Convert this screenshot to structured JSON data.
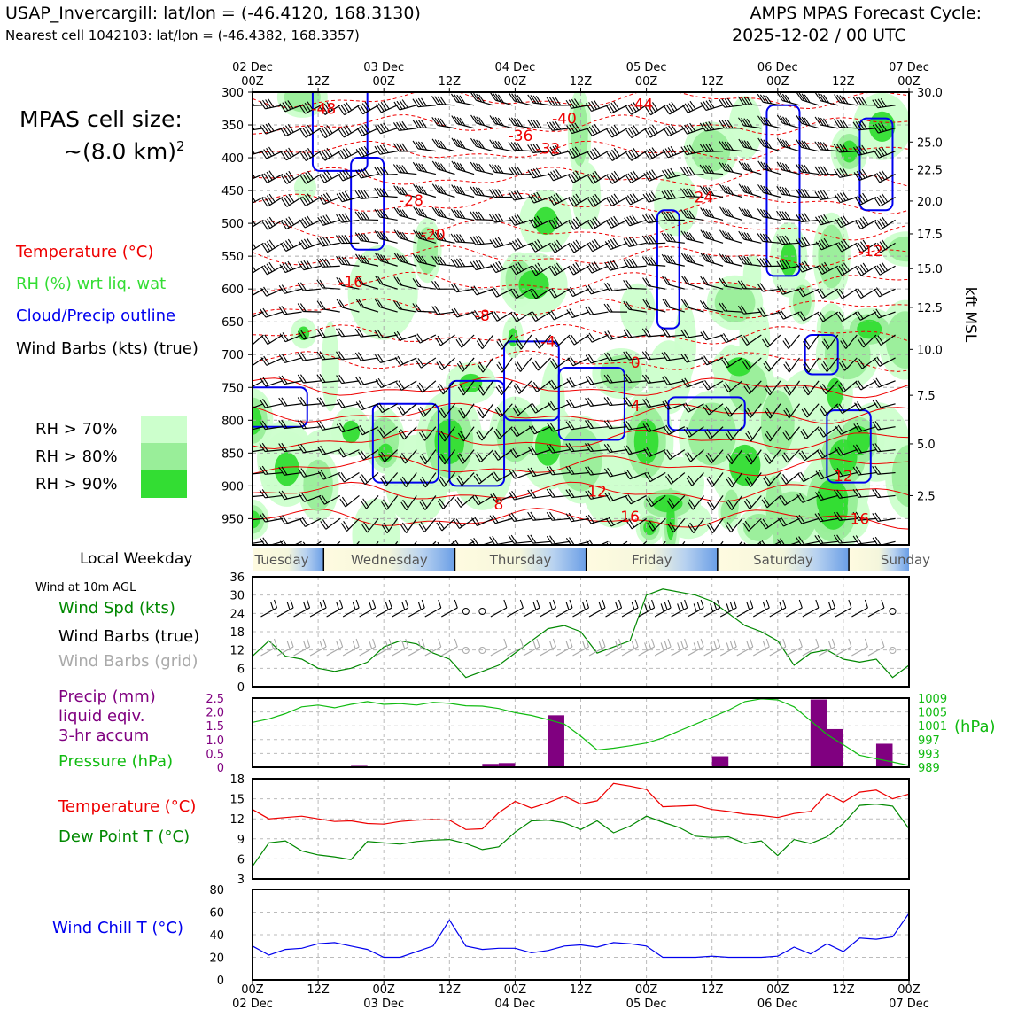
{
  "header": {
    "station_title": "USAP_Invercargill: lat/lon = (-46.4120, 168.3130)",
    "nearest_cell": "Nearest cell 1042103: lat/lon = (-46.4382, 168.3357)",
    "forecast_cycle_line1": "AMPS MPAS Forecast Cycle:",
    "forecast_cycle_line2": "2025-12-02 / 00 UTC"
  },
  "legend": {
    "cell_size_line1": "MPAS cell size:",
    "cell_size_line2": "~(8.0 km)",
    "cell_size_sup": "2",
    "temperature": "Temperature (°C)",
    "rh": "RH (%) wrt liq. wat",
    "cloud": "Cloud/Precip outline",
    "wind_barbs": "Wind Barbs (kts) (true)",
    "rh70": "RH > 70%",
    "rh80": "RH > 80%",
    "rh90": "RH > 90%",
    "local_weekday": "Local Weekday",
    "wind_10m": "Wind at 10m AGL",
    "wind_spd": "Wind Spd (kts)",
    "wind_barbs_true": "Wind Barbs (true)",
    "wind_barbs_grid": "Wind Barbs (grid)",
    "precip_line1": "Precip (mm)",
    "precip_line2": "liquid eqiv.",
    "precip_line3": "3-hr accum",
    "pressure": "Pressure (hPa)",
    "temp2": "Temperature (°C)",
    "dewpoint": "Dew Point T (°C)",
    "windchill": "Wind Chill T (°C)"
  },
  "colors": {
    "temperature": "#ee0000",
    "rh_text": "#33dd33",
    "cloud": "#0000ee",
    "rh70": "#ccffcc",
    "rh80": "#99ee99",
    "rh90": "#33dd33",
    "wind_spd": "#008800",
    "grid_barb": "#aaaaaa",
    "precip": "#800080",
    "pressure": "#11bb11",
    "dewpoint": "#008800",
    "windchill": "#0000ee"
  },
  "chart_data": [
    {
      "type": "heatmap",
      "panel": "upper-air time-height cross section",
      "x_top_labels": [
        {
          "hour": 0,
          "top": "02 Dec",
          "bottom": "00Z"
        },
        {
          "hour": 12,
          "top": "",
          "bottom": "12Z"
        },
        {
          "hour": 24,
          "top": "03 Dec",
          "bottom": "00Z"
        },
        {
          "hour": 36,
          "top": "",
          "bottom": "12Z"
        },
        {
          "hour": 48,
          "top": "04 Dec",
          "bottom": "00Z"
        },
        {
          "hour": 60,
          "top": "",
          "bottom": "12Z"
        },
        {
          "hour": 72,
          "top": "05 Dec",
          "bottom": "00Z"
        },
        {
          "hour": 84,
          "top": "",
          "bottom": "12Z"
        },
        {
          "hour": 96,
          "top": "06 Dec",
          "bottom": "00Z"
        },
        {
          "hour": 108,
          "top": "",
          "bottom": "12Z"
        },
        {
          "hour": 120,
          "top": "07 Dec",
          "bottom": "00Z"
        }
      ],
      "xlim_hours": [
        0,
        120
      ],
      "y_left_pressure_ticks": [
        300,
        350,
        400,
        450,
        500,
        550,
        600,
        650,
        700,
        750,
        800,
        850,
        900,
        950
      ],
      "ylim_pressure": [
        300,
        990
      ],
      "y_right_label": "kft MSL",
      "y_right_ticks": [
        {
          "p": 300,
          "label": "30.0"
        },
        {
          "p": 376,
          "label": "25.0"
        },
        {
          "p": 418,
          "label": "22.5"
        },
        {
          "p": 466,
          "label": "20.0"
        },
        {
          "p": 516,
          "label": "17.5"
        },
        {
          "p": 569,
          "label": "15.0"
        },
        {
          "p": 628,
          "label": "12.5"
        },
        {
          "p": 692,
          "label": "10.0"
        },
        {
          "p": 762,
          "label": "7.5"
        },
        {
          "p": 836,
          "label": "5.0"
        },
        {
          "p": 915,
          "label": "2.5"
        }
      ],
      "temperature_contour_labels": [
        {
          "hour": 13,
          "p": 325,
          "label": "-48"
        },
        {
          "hour": 49,
          "p": 366,
          "label": "-36"
        },
        {
          "hour": 57,
          "p": 340,
          "label": "-40"
        },
        {
          "hour": 71,
          "p": 318,
          "label": "-44"
        },
        {
          "hour": 54,
          "p": 386,
          "label": "-32"
        },
        {
          "hour": 82,
          "p": 460,
          "label": "-24"
        },
        {
          "hour": 29,
          "p": 465,
          "label": "-28"
        },
        {
          "hour": 33,
          "p": 517,
          "label": "-20"
        },
        {
          "hour": 18,
          "p": 589,
          "label": "-16"
        },
        {
          "hour": 42,
          "p": 640,
          "label": "-8"
        },
        {
          "hour": 54,
          "p": 680,
          "label": "-4"
        },
        {
          "hour": 113,
          "p": 542,
          "label": "-12"
        },
        {
          "hour": 70,
          "p": 712,
          "label": "0"
        },
        {
          "hour": 70,
          "p": 778,
          "label": "4"
        },
        {
          "hour": 63,
          "p": 908,
          "label": "12"
        },
        {
          "hour": 45,
          "p": 928,
          "label": "8"
        },
        {
          "hour": 69,
          "p": 947,
          "label": "16"
        },
        {
          "hour": 108,
          "p": 885,
          "label": "12"
        },
        {
          "hour": 111,
          "p": 950,
          "label": "16"
        }
      ],
      "rh_thresholds_percent": [
        70,
        80,
        90
      ]
    },
    {
      "type": "table",
      "panel": "local weekday strip",
      "days": [
        {
          "name": "Tuesday",
          "start_hour": 0,
          "end_hour": 13
        },
        {
          "name": "Wednesday",
          "start_hour": 13,
          "end_hour": 37
        },
        {
          "name": "Thursday",
          "start_hour": 37,
          "end_hour": 61
        },
        {
          "name": "Friday",
          "start_hour": 61,
          "end_hour": 85
        },
        {
          "name": "Saturday",
          "start_hour": 85,
          "end_hour": 109
        },
        {
          "name": "Sunday",
          "start_hour": 109,
          "end_hour": 120
        }
      ]
    },
    {
      "type": "line",
      "panel": "10m wind speed",
      "ylim": [
        0,
        36
      ],
      "yticks": [
        0,
        6,
        12,
        18,
        24,
        30,
        36
      ],
      "x": [
        0,
        3,
        6,
        9,
        12,
        15,
        18,
        21,
        24,
        27,
        30,
        33,
        36,
        39,
        42,
        45,
        48,
        51,
        54,
        57,
        60,
        63,
        66,
        69,
        72,
        75,
        78,
        81,
        84,
        87,
        90,
        93,
        96,
        99,
        102,
        105,
        108,
        111,
        114,
        117,
        120
      ],
      "series": [
        {
          "values": [
            10,
            15,
            10,
            9,
            6,
            5,
            6,
            8,
            13,
            15,
            14,
            11,
            9,
            3,
            5,
            7,
            11,
            15,
            19,
            20,
            18,
            11,
            13,
            15,
            30,
            32,
            31,
            30,
            28,
            24,
            20,
            18,
            15,
            7,
            11,
            12,
            9,
            8,
            9,
            3,
            7
          ]
        }
      ],
      "true_barb_speeds_kts": [
        20,
        20,
        20,
        15,
        15,
        15,
        15,
        15,
        15,
        15,
        15,
        10,
        10,
        5,
        5,
        10,
        10,
        15,
        20,
        20,
        20,
        15,
        15,
        20,
        30,
        30,
        30,
        30,
        30,
        25,
        20,
        20,
        15,
        10,
        10,
        15,
        10,
        10,
        10,
        5,
        5
      ]
    },
    {
      "type": "bar",
      "panel": "precip and pressure",
      "ylabel_left": "Precip (mm)",
      "ylim_left": [
        0,
        2.5
      ],
      "yticks_left": [
        0,
        0.5,
        1.0,
        1.5,
        2.0,
        2.5
      ],
      "ylim_right": [
        989,
        1009
      ],
      "yticks_right": [
        989,
        993,
        997,
        1001,
        1005,
        1009
      ],
      "ylabel_right": "(hPa)",
      "precip_bars": [
        {
          "hour": 19.5,
          "value": 0.05
        },
        {
          "hour": 43.5,
          "value": 0.12
        },
        {
          "hour": 46.5,
          "value": 0.15
        },
        {
          "hour": 55.5,
          "value": 1.88
        },
        {
          "hour": 85.5,
          "value": 0.4
        },
        {
          "hour": 103.5,
          "value": 2.45
        },
        {
          "hour": 106.5,
          "value": 1.38
        },
        {
          "hour": 115.5,
          "value": 0.85
        }
      ],
      "pressure_x": [
        0,
        3,
        6,
        9,
        12,
        15,
        18,
        21,
        24,
        27,
        30,
        33,
        36,
        39,
        42,
        45,
        48,
        51,
        54,
        57,
        60,
        63,
        66,
        69,
        72,
        75,
        78,
        81,
        84,
        87,
        90,
        93,
        96,
        99,
        102,
        105,
        108,
        111,
        114,
        117,
        120
      ],
      "pressure_values": [
        1002,
        1003,
        1004.5,
        1006.5,
        1007,
        1006.2,
        1007.2,
        1008,
        1007.2,
        1007.4,
        1007,
        1007.8,
        1007.5,
        1006.8,
        1006.7,
        1006,
        1004.8,
        1004,
        1002.8,
        1001.5,
        998,
        994,
        994.5,
        995.2,
        996,
        997.5,
        999.5,
        1001.5,
        1003.5,
        1005.5,
        1008,
        1008.8,
        1008.5,
        1006.5,
        1002.5,
        998.5,
        995.5,
        992.5,
        991.5,
        990.5,
        989.5
      ]
    },
    {
      "type": "line",
      "panel": "temperature and dew point",
      "ylim": [
        3,
        18
      ],
      "yticks": [
        3,
        6,
        9,
        12,
        15,
        18
      ],
      "x": [
        0,
        3,
        6,
        9,
        12,
        15,
        18,
        21,
        24,
        27,
        30,
        33,
        36,
        39,
        42,
        45,
        48,
        51,
        54,
        57,
        60,
        63,
        66,
        69,
        72,
        75,
        78,
        81,
        84,
        87,
        90,
        93,
        96,
        99,
        102,
        105,
        108,
        111,
        114,
        117,
        120
      ],
      "series": [
        {
          "name": "Temperature (°C)",
          "values": [
            13.4,
            12.0,
            12.2,
            12.4,
            12.0,
            11.6,
            11.7,
            11.3,
            11.2,
            11.6,
            11.8,
            11.9,
            11.8,
            10.4,
            10.5,
            12.9,
            14.6,
            13.6,
            14.4,
            15.4,
            14.2,
            14.7,
            17.3,
            16.9,
            16.4,
            13.8,
            13.9,
            14.0,
            13.4,
            13.1,
            12.7,
            12.5,
            12.2,
            12.8,
            13.1,
            15.8,
            14.5,
            16.0,
            16.3,
            15.0,
            15.7
          ]
        },
        {
          "name": "Dew Point T (°C)",
          "values": [
            4.9,
            8.4,
            8.7,
            7.2,
            6.6,
            6.3,
            5.9,
            8.6,
            8.4,
            8.2,
            8.6,
            8.8,
            8.9,
            8.3,
            7.4,
            7.8,
            10.0,
            11.7,
            11.8,
            11.4,
            10.4,
            11.7,
            9.9,
            10.9,
            12.4,
            11.5,
            10.7,
            9.4,
            9.2,
            9.3,
            8.3,
            8.7,
            6.5,
            8.9,
            8.3,
            9.3,
            11.3,
            14.0,
            14.2,
            13.9,
            10.5
          ]
        }
      ]
    },
    {
      "type": "line",
      "panel": "wind chill",
      "ylim": [
        0,
        80
      ],
      "yticks": [
        0,
        20,
        40,
        60,
        80
      ],
      "x": [
        0,
        3,
        6,
        9,
        12,
        15,
        18,
        21,
        24,
        27,
        30,
        33,
        36,
        39,
        42,
        45,
        48,
        51,
        54,
        57,
        60,
        63,
        66,
        69,
        72,
        75,
        78,
        81,
        84,
        87,
        90,
        93,
        96,
        99,
        102,
        105,
        108,
        111,
        114,
        117,
        120
      ],
      "series": [
        {
          "values": [
            30,
            22,
            27,
            28,
            32,
            33,
            30,
            27,
            20,
            20,
            25,
            30,
            53,
            30,
            27,
            28,
            28,
            24,
            26,
            30,
            31,
            29,
            33,
            32,
            30,
            20,
            20,
            20,
            21,
            20,
            20,
            20,
            21,
            29,
            23,
            32,
            25,
            37,
            36,
            38,
            59
          ]
        }
      ],
      "x_bottom_labels": [
        {
          "hour": 0,
          "top": "00Z",
          "bottom": "02 Dec"
        },
        {
          "hour": 12,
          "top": "12Z",
          "bottom": ""
        },
        {
          "hour": 24,
          "top": "00Z",
          "bottom": "03 Dec"
        },
        {
          "hour": 36,
          "top": "12Z",
          "bottom": ""
        },
        {
          "hour": 48,
          "top": "00Z",
          "bottom": "04 Dec"
        },
        {
          "hour": 60,
          "top": "12Z",
          "bottom": ""
        },
        {
          "hour": 72,
          "top": "00Z",
          "bottom": "05 Dec"
        },
        {
          "hour": 84,
          "top": "12Z",
          "bottom": ""
        },
        {
          "hour": 96,
          "top": "00Z",
          "bottom": "06 Dec"
        },
        {
          "hour": 108,
          "top": "12Z",
          "bottom": ""
        },
        {
          "hour": 120,
          "top": "00Z",
          "bottom": "07 Dec"
        }
      ]
    }
  ]
}
